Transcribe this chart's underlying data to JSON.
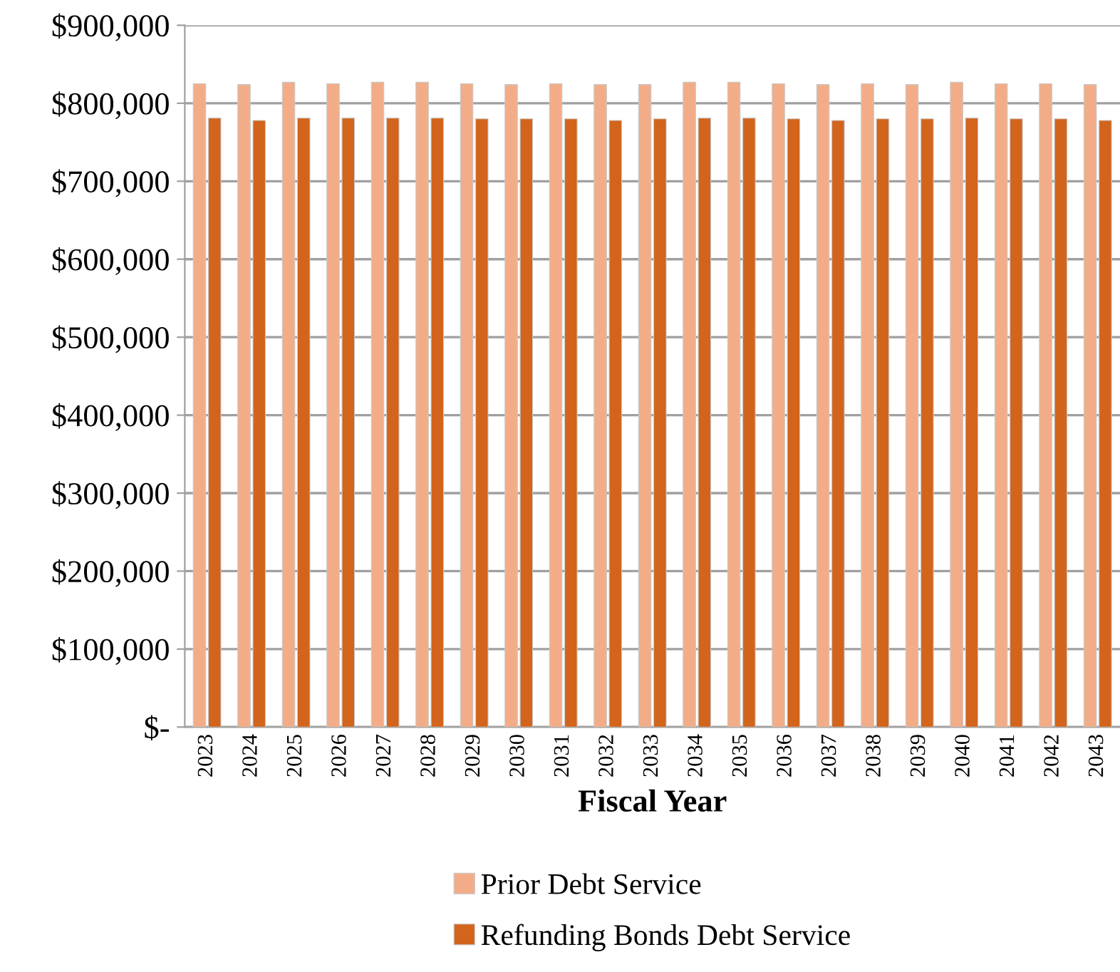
{
  "chart_data": {
    "type": "bar",
    "xlabel": "Fiscal Year",
    "categories": [
      "2023",
      "2024",
      "2025",
      "2026",
      "2027",
      "2028",
      "2029",
      "2030",
      "2031",
      "2032",
      "2033",
      "2034",
      "2035",
      "2036",
      "2037",
      "2038",
      "2039",
      "2040",
      "2041",
      "2042",
      "2043"
    ],
    "series": [
      {
        "name": "Prior Debt Service",
        "color": "#f2ad88",
        "values": [
          825000,
          824000,
          827000,
          825000,
          827000,
          827000,
          825000,
          824000,
          825000,
          824000,
          824000,
          827000,
          827000,
          825000,
          824000,
          825000,
          824000,
          827000,
          825000,
          825000,
          824000
        ]
      },
      {
        "name": "Refunding Bonds Debt Service",
        "color": "#d2641c",
        "values": [
          781000,
          778000,
          781000,
          781000,
          781000,
          781000,
          780000,
          780000,
          780000,
          778000,
          780000,
          781000,
          781000,
          780000,
          778000,
          780000,
          780000,
          781000,
          780000,
          780000,
          778000
        ]
      }
    ],
    "ylim": [
      0,
      900000
    ],
    "yticks": [
      {
        "value": 0,
        "label": "$-"
      },
      {
        "value": 100000,
        "label": "$100,000"
      },
      {
        "value": 200000,
        "label": "$200,000"
      },
      {
        "value": 300000,
        "label": "$300,000"
      },
      {
        "value": 400000,
        "label": "$400,000"
      },
      {
        "value": 500000,
        "label": "$500,000"
      },
      {
        "value": 600000,
        "label": "$600,000"
      },
      {
        "value": 700000,
        "label": "$700,000"
      },
      {
        "value": 800000,
        "label": "$800,000"
      },
      {
        "value": 900000,
        "label": "$900,000"
      }
    ],
    "grid": "y",
    "legend": "bottom"
  }
}
